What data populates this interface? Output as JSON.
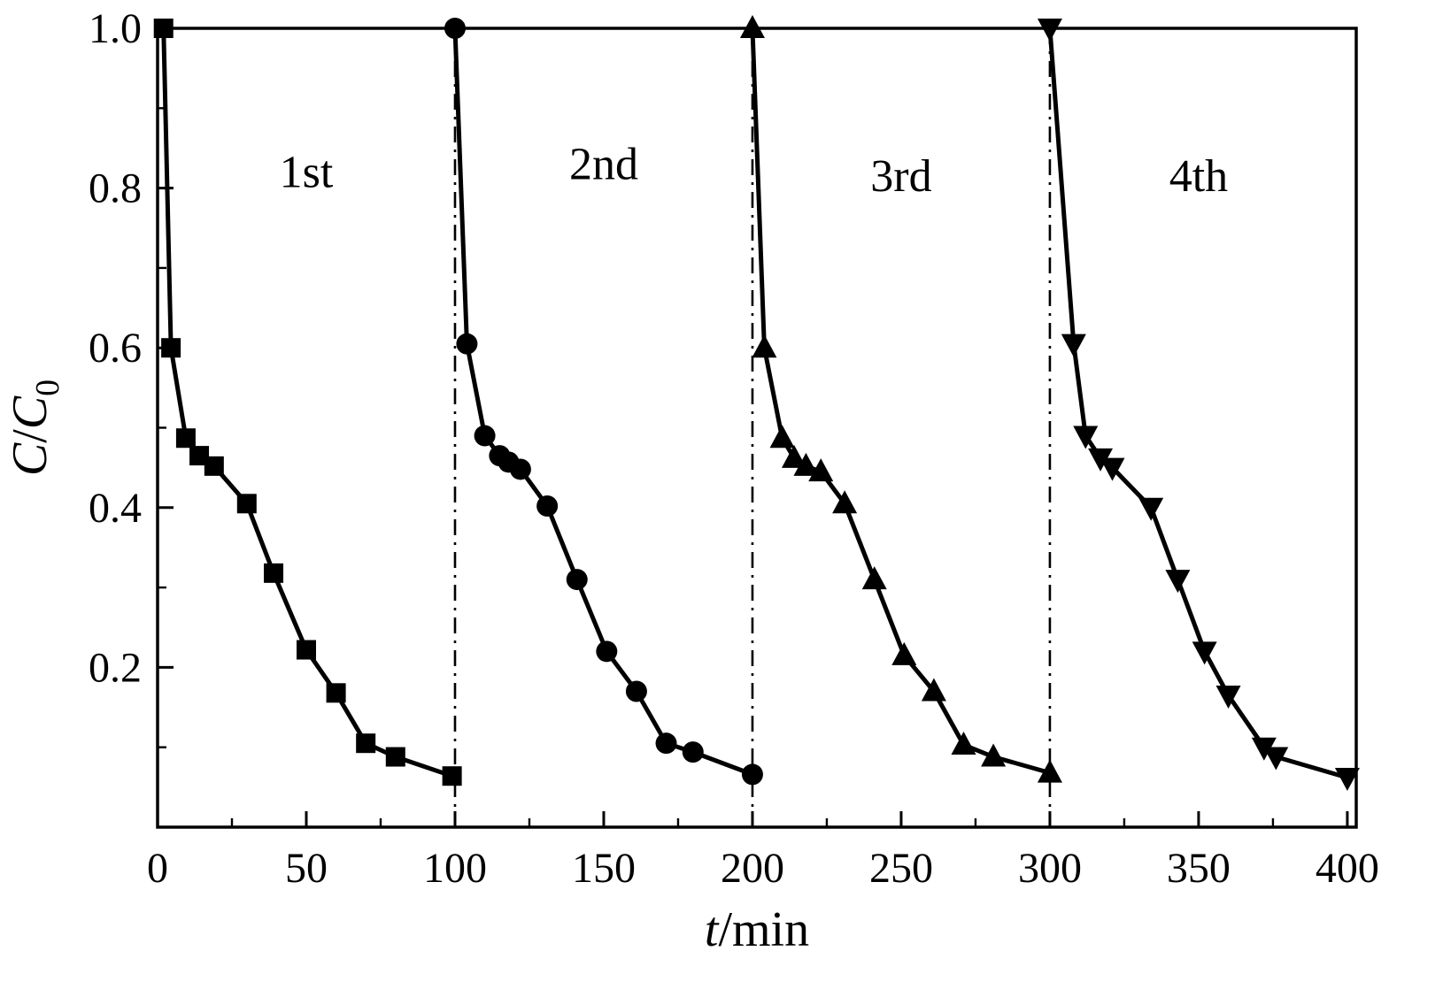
{
  "chart_data": {
    "type": "line",
    "title": "",
    "xlabel": "t/min",
    "ylabel": "C/C0",
    "xlabel_parts": [
      {
        "text": "t",
        "italic": true,
        "sub": false
      },
      {
        "text": "/min",
        "italic": false,
        "sub": false
      }
    ],
    "ylabel_parts": [
      {
        "text": "C",
        "italic": true,
        "sub": false
      },
      {
        "text": "/",
        "italic": false,
        "sub": false
      },
      {
        "text": "C",
        "italic": true,
        "sub": false
      },
      {
        "text": "0",
        "italic": false,
        "sub": true
      }
    ],
    "xlim": [
      0,
      403
    ],
    "ylim": [
      0,
      1.0
    ],
    "x_ticks": [
      0,
      50,
      100,
      150,
      200,
      250,
      300,
      350,
      400
    ],
    "x_tick_labels": [
      "0",
      "50",
      "100",
      "150",
      "200",
      "250",
      "300",
      "350",
      "400"
    ],
    "y_ticks": [
      0.2,
      0.4,
      0.6,
      0.8,
      1.0
    ],
    "y_tick_labels": [
      "0.2",
      "0.4",
      "0.6",
      "0.8",
      "1.0"
    ],
    "x_minor_step": 25,
    "y_minor_step": 0.1,
    "grid": false,
    "frame": true,
    "legend_position": "none",
    "line_color": "#000000",
    "vertical_divider_lines": [
      100,
      200,
      300
    ],
    "series": [
      {
        "name": "1st",
        "marker": "square",
        "x": [
          2,
          4.5,
          9.5,
          14,
          19,
          30,
          39,
          50,
          60,
          70,
          80,
          99
        ],
        "y": [
          1.0,
          0.6,
          0.487,
          0.465,
          0.452,
          0.405,
          0.318,
          0.222,
          0.168,
          0.105,
          0.088,
          0.064
        ]
      },
      {
        "name": "2nd",
        "marker": "circle",
        "x": [
          100,
          104,
          110,
          115,
          118,
          122,
          131,
          141,
          151,
          161,
          171,
          180,
          200
        ],
        "y": [
          1.0,
          0.605,
          0.49,
          0.465,
          0.457,
          0.448,
          0.402,
          0.31,
          0.22,
          0.17,
          0.105,
          0.094,
          0.066
        ]
      },
      {
        "name": "3rd",
        "marker": "triangle-up",
        "x": [
          200,
          204,
          210,
          214,
          218,
          223,
          231,
          241,
          251,
          261,
          271,
          281,
          300
        ],
        "y": [
          1.0,
          0.6,
          0.487,
          0.462,
          0.452,
          0.445,
          0.405,
          0.31,
          0.215,
          0.17,
          0.103,
          0.088,
          0.068
        ]
      },
      {
        "name": "4th",
        "marker": "triangle-down",
        "x": [
          300,
          308,
          312,
          317,
          321,
          334,
          343,
          352,
          360,
          372,
          376,
          400
        ],
        "y": [
          1.0,
          0.605,
          0.49,
          0.462,
          0.45,
          0.4,
          0.31,
          0.22,
          0.165,
          0.1,
          0.088,
          0.062
        ]
      }
    ],
    "annotations": [
      {
        "text": "1st",
        "x": 50,
        "y": 0.82
      },
      {
        "text": "2nd",
        "x": 150,
        "y": 0.83
      },
      {
        "text": "3rd",
        "x": 250,
        "y": 0.815
      },
      {
        "text": "4th",
        "x": 350,
        "y": 0.815
      }
    ]
  }
}
